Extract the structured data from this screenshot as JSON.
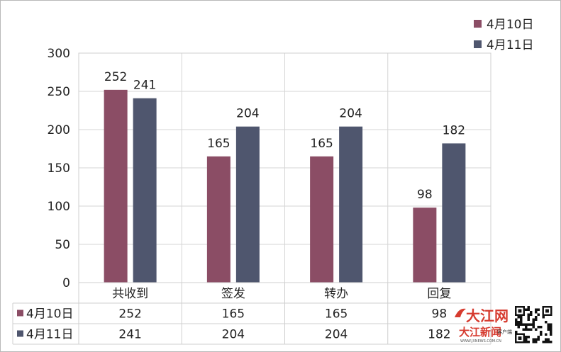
{
  "chart_data": {
    "type": "bar",
    "categories": [
      "共收到",
      "签发",
      "转办",
      "回复"
    ],
    "series": [
      {
        "name": "4月10日",
        "values": [
          252,
          165,
          165,
          98
        ],
        "color": "#8b4d65"
      },
      {
        "name": "4月11日",
        "values": [
          241,
          204,
          204,
          182
        ],
        "color": "#4f566e"
      }
    ],
    "ylim": [
      0,
      300
    ],
    "yticks": [
      0,
      50,
      100,
      150,
      200,
      250,
      300
    ],
    "grid": true,
    "legend": "top-right",
    "data_table": true
  },
  "watermark": {
    "text_top": "大江网",
    "text_bottom": "大江新闻",
    "small_text": "WWW.JXNEWS.COM.CN",
    "side_text": "客户端"
  }
}
